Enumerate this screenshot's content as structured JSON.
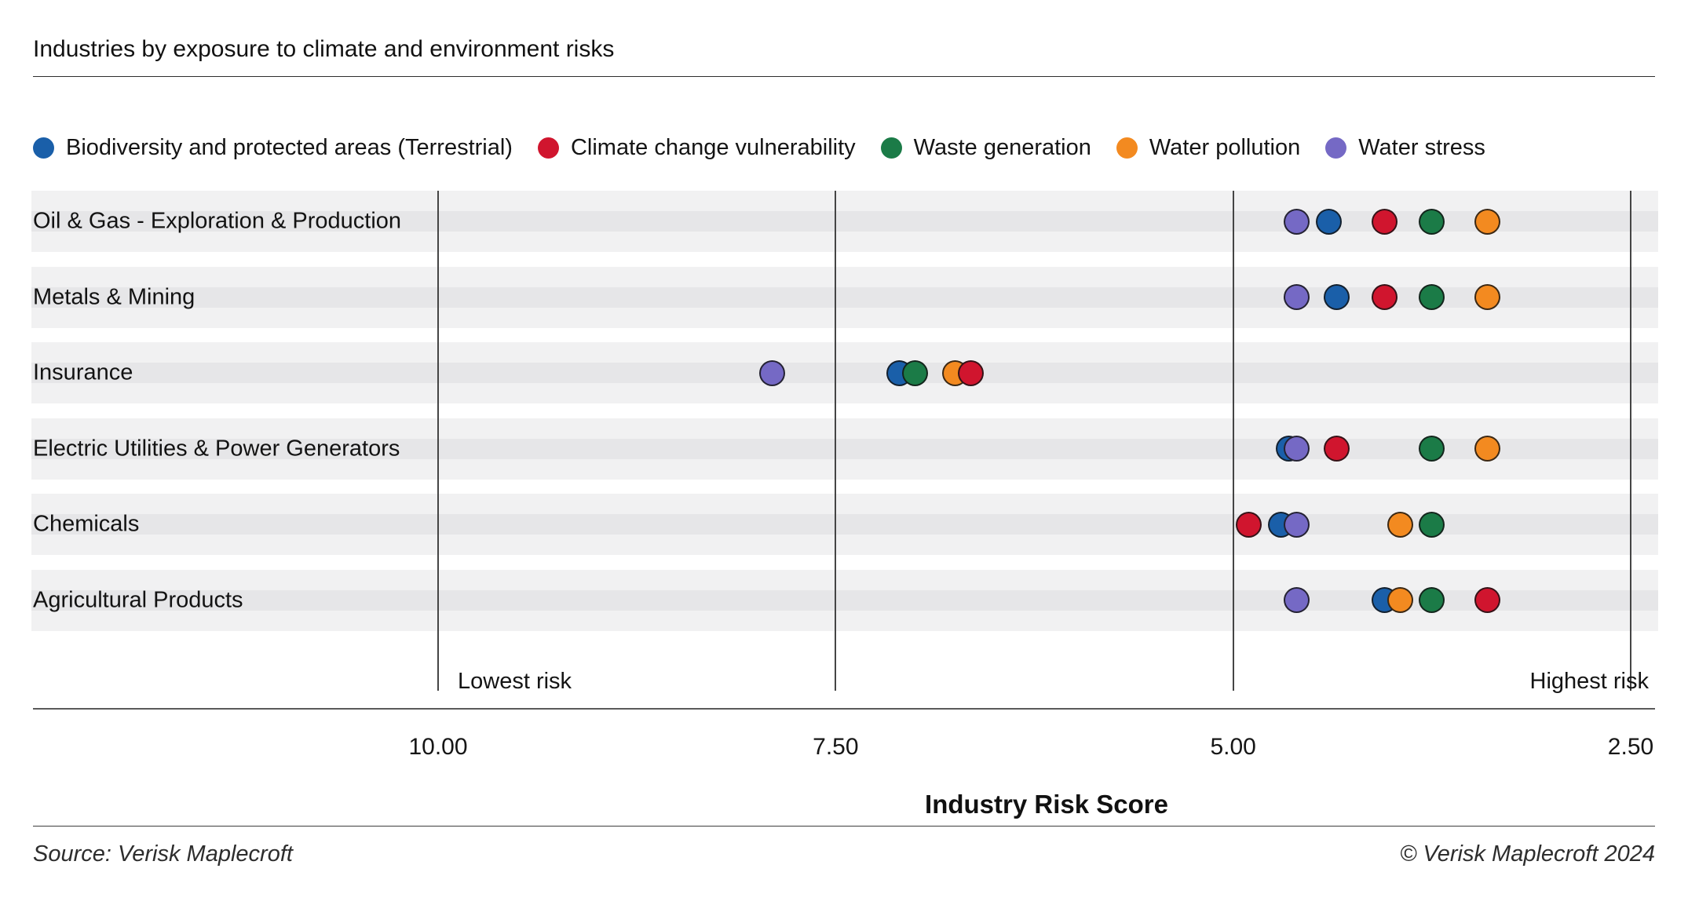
{
  "header": {
    "title": "Industries by exposure to climate and environment risks"
  },
  "axis": {
    "title": "Industry Risk Score",
    "lowest_label": "Lowest risk",
    "highest_label": "Highest risk",
    "tick_labels": [
      "10.00",
      "7.50",
      "5.00",
      "2.50"
    ]
  },
  "footer": {
    "source": "Source: Verisk Maplecroft",
    "copyright": "© Verisk Maplecroft 2024"
  },
  "chart_data": {
    "type": "scatter",
    "variant": "horizontal-dot-plot",
    "title": "Industries by exposure to climate and environment risks",
    "xlabel": "Industry Risk Score",
    "x_ticks": [
      10.0,
      7.5,
      5.0,
      2.5
    ],
    "x_tick_labels": [
      "10.00",
      "7.50",
      "5.00",
      "2.50"
    ],
    "x_axis_reversed": true,
    "x_range": [
      10.0,
      2.5
    ],
    "x_endpoint_labels": {
      "left": "Lowest risk",
      "right": "Highest risk"
    },
    "grid": "vertical-lines-at-ticks",
    "legend_position": "top",
    "categories": [
      "Oil & Gas - Exploration & Production",
      "Metals & Mining",
      "Insurance",
      "Electric Utilities & Power Generators",
      "Chemicals",
      "Agricultural Products"
    ],
    "series": [
      {
        "key": "biodiversity",
        "name": "Biodiversity and protected areas (Terrestrial)",
        "color": "#1a5fa9",
        "values": [
          4.4,
          4.35,
          7.1,
          4.65,
          4.7,
          4.05
        ]
      },
      {
        "key": "climate",
        "name": "Climate change vulnerability",
        "color": "#d0152e",
        "values": [
          4.05,
          4.05,
          6.65,
          4.35,
          4.9,
          3.4
        ]
      },
      {
        "key": "waste",
        "name": "Waste generation",
        "color": "#1b7b47",
        "values": [
          3.75,
          3.75,
          7.0,
          3.75,
          3.75,
          3.75
        ]
      },
      {
        "key": "water_pollution",
        "name": "Water pollution",
        "color": "#f38a20",
        "values": [
          3.4,
          3.4,
          6.75,
          3.4,
          3.95,
          3.95
        ]
      },
      {
        "key": "water_stress",
        "name": "Water stress",
        "color": "#7569c5",
        "values": [
          4.6,
          4.6,
          7.9,
          4.6,
          4.6,
          4.6
        ]
      }
    ],
    "draw_order": [
      "biodiversity",
      "waste",
      "water_pollution",
      "climate",
      "water_stress"
    ]
  }
}
